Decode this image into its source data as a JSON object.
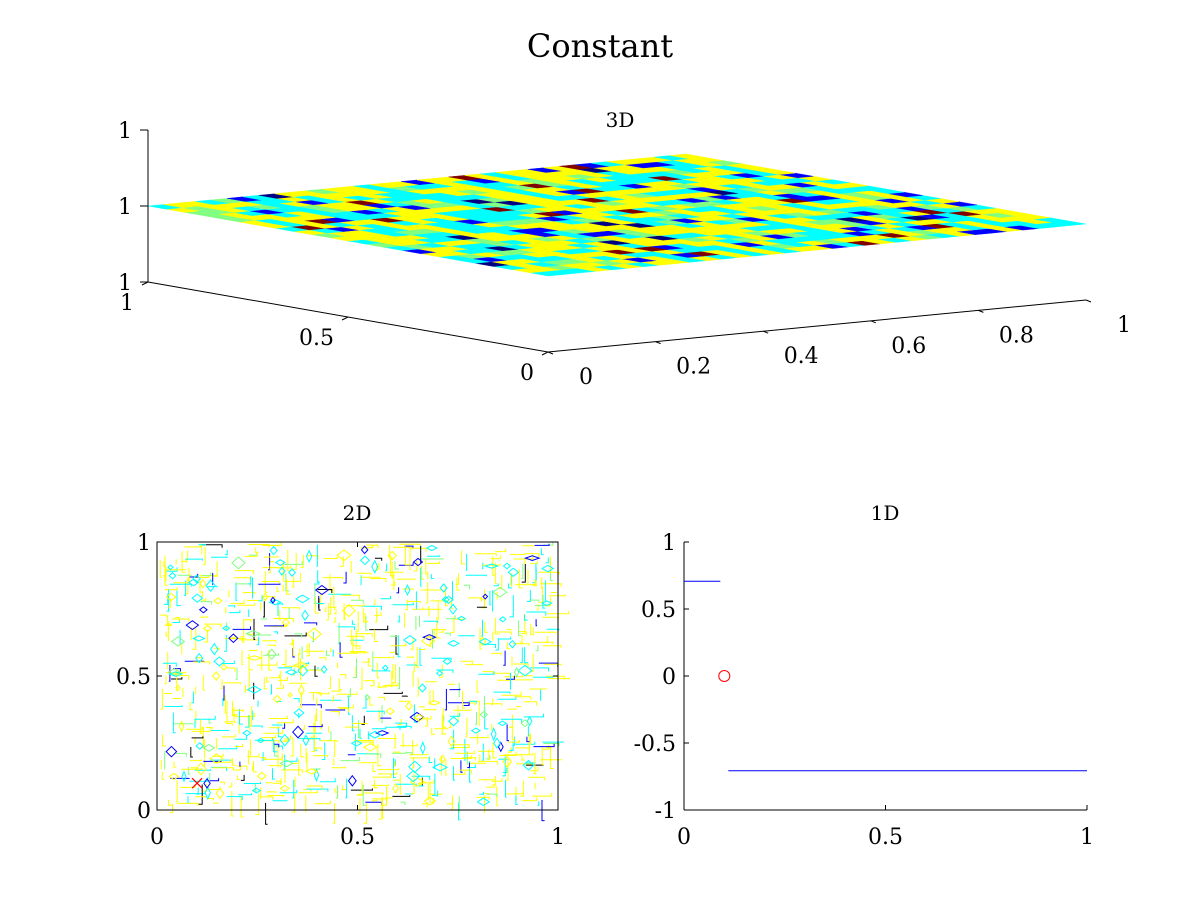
{
  "figure": {
    "title": "Constant"
  },
  "colors": {
    "blue": "#0000ff",
    "cyan": "#00ffff",
    "yellow": "#ffff00",
    "green": "#80ff80",
    "red": "#ff0000",
    "darkred": "#800000",
    "black": "#000000",
    "darkblue": "#000080"
  },
  "chart_data": [
    {
      "id": "3d",
      "type": "surface",
      "title": "3D",
      "x_ticks": [
        "0",
        "0.2",
        "0.4",
        "0.6",
        "0.8",
        "1"
      ],
      "y_ticks": [
        "0",
        "0.5",
        "1"
      ],
      "z_ticks": [
        "1",
        "1",
        "1"
      ],
      "xlim": [
        0,
        1
      ],
      "ylim": [
        0,
        1
      ],
      "z_value": 1,
      "grid": true,
      "colormap": [
        "#000080",
        "#0000ff",
        "#00ffff",
        "#80ff80",
        "#ffff00",
        "#ff0000",
        "#800000"
      ]
    },
    {
      "id": "2d",
      "type": "contour",
      "title": "2D",
      "x_ticks": [
        "0",
        "0.5",
        "1"
      ],
      "y_ticks": [
        "0",
        "0.5",
        "1"
      ],
      "xlim": [
        0,
        1
      ],
      "ylim": [
        0,
        1
      ],
      "marker": {
        "shape": "x",
        "x": 0.1,
        "y": 0.1,
        "color": "#ff0000"
      }
    },
    {
      "id": "1d",
      "type": "line",
      "title": "1D",
      "x_ticks": [
        "0",
        "0.5",
        "1"
      ],
      "y_ticks": [
        "1",
        "0.5",
        "0",
        "-0.5",
        "-1"
      ],
      "xlim": [
        0,
        1
      ],
      "ylim": [
        -1,
        1
      ],
      "series": [
        {
          "x": [
            0,
            0.09
          ],
          "y": [
            0.7071,
            0.7071
          ],
          "color": "#0000ff"
        },
        {
          "x": [
            0.11,
            1
          ],
          "y": [
            -0.7071,
            -0.7071
          ],
          "color": "#0000ff"
        }
      ],
      "marker": {
        "shape": "circle",
        "x": 0.1,
        "y": 0,
        "color": "#ff0000"
      }
    }
  ]
}
